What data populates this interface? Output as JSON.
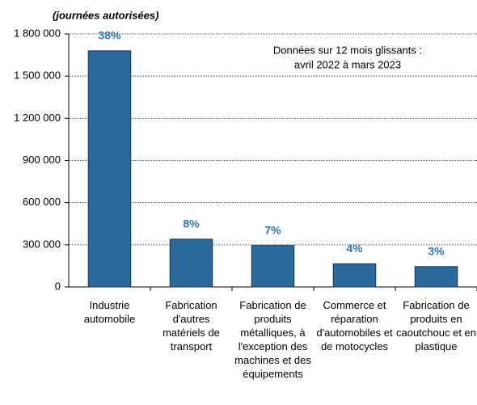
{
  "chart_data": {
    "type": "bar",
    "y_label": "(journées autorisées)",
    "annotation": [
      "Données sur 12 mois glissants :",
      "avril 2022 à mars 2023"
    ],
    "categories": [
      "Industrie automobile",
      "Fabrication d'autres matériels de transport",
      "Fabrication de produits métalliques, à l'exception des machines et des équipements",
      "Commerce et réparation d'automobiles et de motocycles",
      "Fabrication de produits en caoutchouc et en plastique"
    ],
    "values": [
      1680000,
      340000,
      295000,
      165000,
      145000
    ],
    "shares": [
      {
        "value": 38,
        "label": "38%"
      },
      {
        "value": 8,
        "label": "8%"
      },
      {
        "value": 7,
        "label": "7%"
      },
      {
        "value": 4,
        "label": "4%"
      },
      {
        "value": 3,
        "label": "3%"
      }
    ],
    "color": "#2a6b9c",
    "share_color": "#2e75b6",
    "ylim": [
      0,
      1800000
    ],
    "yticks": [
      0,
      {
        "value": 300000,
        "label": "300 000"
      },
      {
        "value": 600000,
        "label": "600 000"
      },
      {
        "value": 900000,
        "label": "900 000"
      },
      {
        "value": 1200000,
        "label": "1 200 000"
      },
      {
        "value": 1500000,
        "label": "1 500 000"
      },
      {
        "value": 1800000,
        "label": "1 800 000"
      }
    ],
    "grid": true
  }
}
